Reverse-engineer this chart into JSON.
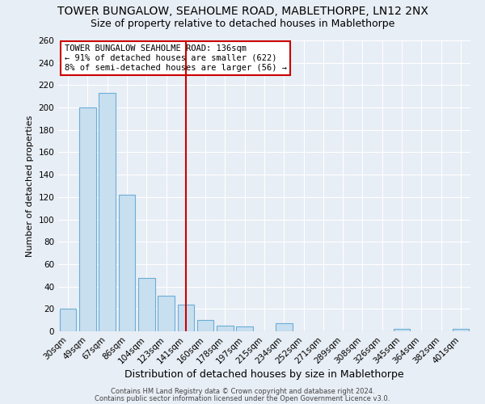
{
  "title": "TOWER BUNGALOW, SEAHOLME ROAD, MABLETHORPE, LN12 2NX",
  "subtitle": "Size of property relative to detached houses in Mablethorpe",
  "xlabel": "Distribution of detached houses by size in Mablethorpe",
  "ylabel": "Number of detached properties",
  "footer_line1": "Contains HM Land Registry data © Crown copyright and database right 2024.",
  "footer_line2": "Contains public sector information licensed under the Open Government Licence v3.0.",
  "categories": [
    "30sqm",
    "49sqm",
    "67sqm",
    "86sqm",
    "104sqm",
    "123sqm",
    "141sqm",
    "160sqm",
    "178sqm",
    "197sqm",
    "215sqm",
    "234sqm",
    "252sqm",
    "271sqm",
    "289sqm",
    "308sqm",
    "326sqm",
    "345sqm",
    "364sqm",
    "382sqm",
    "401sqm"
  ],
  "values": [
    20,
    200,
    213,
    122,
    48,
    32,
    24,
    10,
    5,
    4,
    0,
    7,
    0,
    0,
    0,
    0,
    0,
    2,
    0,
    0,
    2
  ],
  "bar_color": "#c8dff0",
  "bar_edge_color": "#6aaed6",
  "property_line_x": 6.0,
  "property_line_color": "#cc0000",
  "legend_text_line1": "TOWER BUNGALOW SEAHOLME ROAD: 136sqm",
  "legend_text_line2": "← 91% of detached houses are smaller (622)",
  "legend_text_line3": "8% of semi-detached houses are larger (56) →",
  "legend_box_edge_color": "#cc0000",
  "ylim": [
    0,
    260
  ],
  "yticks": [
    0,
    20,
    40,
    60,
    80,
    100,
    120,
    140,
    160,
    180,
    200,
    220,
    240,
    260
  ],
  "bg_color": "#e8eef5",
  "plot_bg_color": "#e8eef5",
  "grid_color": "#ffffff",
  "title_fontsize": 10,
  "subtitle_fontsize": 9,
  "tick_fontsize": 7.5,
  "ylabel_fontsize": 8,
  "xlabel_fontsize": 9
}
